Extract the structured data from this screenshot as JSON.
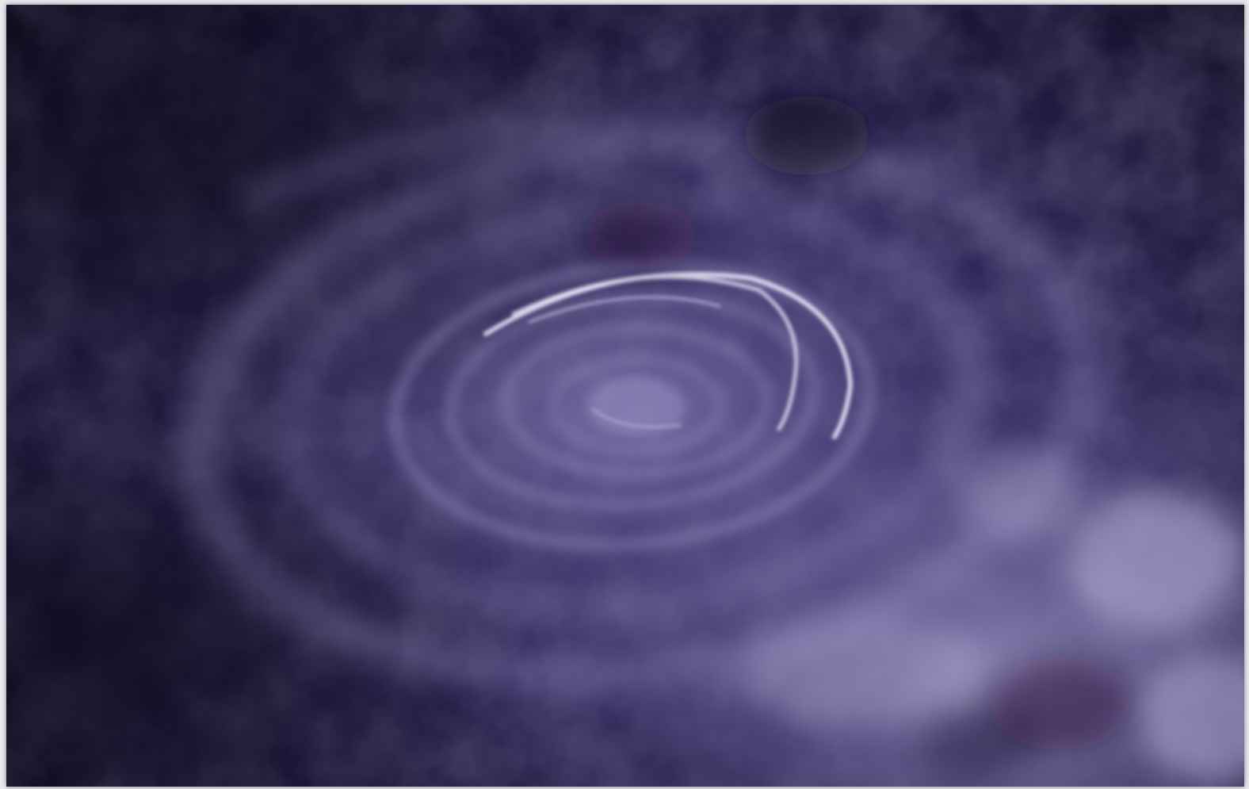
{
  "image": {
    "palette": {
      "deep": "#0c0a1c",
      "dark": "#1c1738",
      "mid": "#3f356b",
      "haze": "#6d639c",
      "light": "#b9b2d8",
      "highlight": "#efeaff"
    }
  }
}
